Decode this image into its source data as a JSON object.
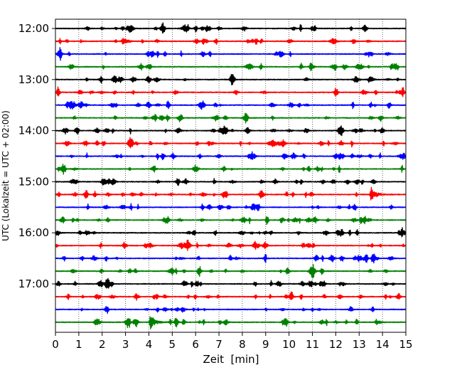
{
  "chart_data": {
    "type": "line",
    "title": "",
    "xlabel": "Zeit  [min]",
    "ylabel": "UTC (Lokalzeit = UTC + 02:00)",
    "xlim": [
      0,
      15
    ],
    "x_ticks": [
      "0",
      "1",
      "2",
      "3",
      "4",
      "5",
      "6",
      "7",
      "8",
      "9",
      "10",
      "11",
      "12",
      "13",
      "14",
      "15"
    ],
    "y_ticks": [
      "12:00",
      "13:00",
      "14:00",
      "15:00",
      "16:00",
      "17:00"
    ],
    "trace_colors": [
      "#000000",
      "#ff0000",
      "#0000ff",
      "#008000"
    ],
    "grid": "vertical dotted at each minute",
    "traces": [
      {
        "start": "12:00",
        "color": "#000000"
      },
      {
        "start": "12:15",
        "color": "#ff0000"
      },
      {
        "start": "12:30",
        "color": "#0000ff"
      },
      {
        "start": "12:45",
        "color": "#008000"
      },
      {
        "start": "13:00",
        "color": "#000000"
      },
      {
        "start": "13:15",
        "color": "#ff0000"
      },
      {
        "start": "13:30",
        "color": "#0000ff"
      },
      {
        "start": "13:45",
        "color": "#008000"
      },
      {
        "start": "14:00",
        "color": "#000000"
      },
      {
        "start": "14:15",
        "color": "#ff0000"
      },
      {
        "start": "14:30",
        "color": "#0000ff"
      },
      {
        "start": "14:45",
        "color": "#008000"
      },
      {
        "start": "15:00",
        "color": "#000000"
      },
      {
        "start": "15:15",
        "color": "#ff0000",
        "events": [
          {
            "minute": 13.5,
            "amplitude": 1.0
          }
        ]
      },
      {
        "start": "15:30",
        "color": "#0000ff"
      },
      {
        "start": "15:45",
        "color": "#008000"
      },
      {
        "start": "16:00",
        "color": "#000000"
      },
      {
        "start": "16:15",
        "color": "#ff0000"
      },
      {
        "start": "16:30",
        "color": "#0000ff"
      },
      {
        "start": "16:45",
        "color": "#008000"
      },
      {
        "start": "17:00",
        "color": "#000000"
      },
      {
        "start": "17:15",
        "color": "#ff0000"
      },
      {
        "start": "17:30",
        "color": "#0000ff"
      },
      {
        "start": "17:45",
        "color": "#008000",
        "events": [
          {
            "minute": 4.05,
            "amplitude": 1.0
          }
        ]
      }
    ]
  }
}
